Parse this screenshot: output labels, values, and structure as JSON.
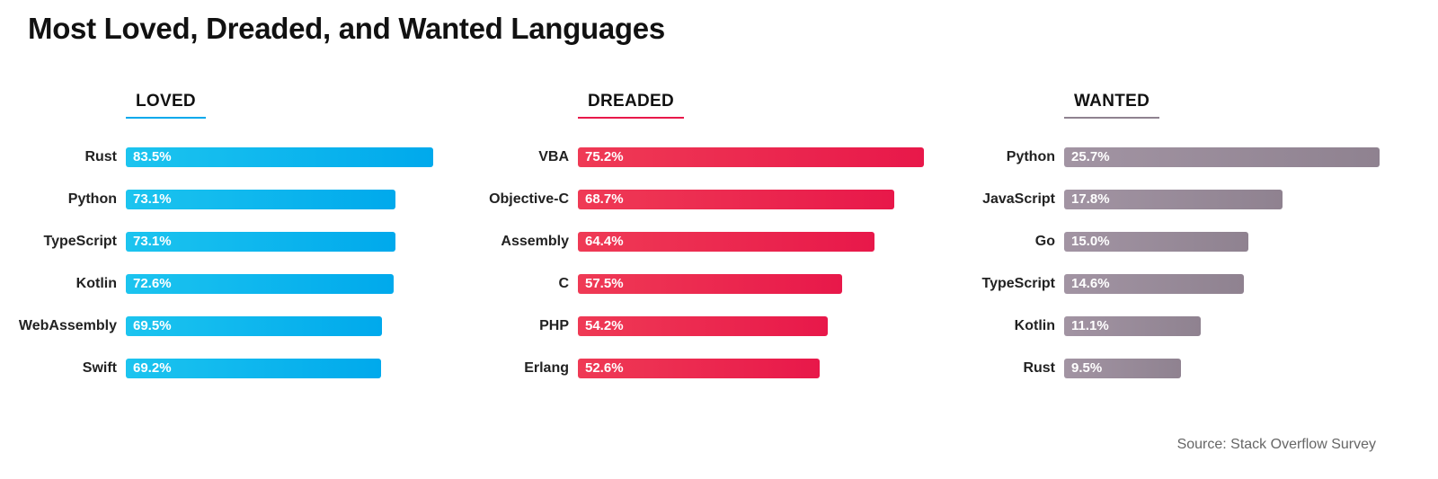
{
  "title": "Most Loved, Dreaded, and Wanted Languages",
  "source": "Source: Stack Overflow Survey",
  "chart_data": [
    {
      "type": "bar",
      "orientation": "horizontal",
      "title": "LOVED",
      "color_start": "#1cc4ef",
      "color_end": "#00a9ec",
      "scale_max": 100,
      "categories": [
        "Rust",
        "Python",
        "TypeScript",
        "Kotlin",
        "WebAssembly",
        "Swift"
      ],
      "values": [
        83.5,
        73.1,
        73.1,
        72.6,
        69.5,
        69.2
      ],
      "value_labels": [
        "83.5%",
        "73.1%",
        "73.1%",
        "72.6%",
        "69.5%",
        "69.2%"
      ]
    },
    {
      "type": "bar",
      "orientation": "horizontal",
      "title": "DREADED",
      "color_start": "#ef3a55",
      "color_end": "#e8184a",
      "scale_max": 100,
      "categories": [
        "VBA",
        "Objective-C",
        "Assembly",
        "C",
        "PHP",
        "Erlang"
      ],
      "values": [
        75.2,
        68.7,
        64.4,
        57.5,
        54.2,
        52.6
      ],
      "value_labels": [
        "75.2%",
        "68.7%",
        "64.4%",
        "57.5%",
        "54.2%",
        "52.6%"
      ]
    },
    {
      "type": "bar",
      "orientation": "horizontal",
      "title": "WANTED",
      "color_start": "#a294a3",
      "color_end": "#8f8290",
      "scale_max": 30,
      "categories": [
        "Python",
        "JavaScript",
        "Go",
        "TypeScript",
        "Kotlin",
        "Rust"
      ],
      "values": [
        25.7,
        17.8,
        15.0,
        14.6,
        11.1,
        9.5
      ],
      "value_labels": [
        "25.7%",
        "17.8%",
        "15.0%",
        "14.6%",
        "11.1%",
        "9.5%"
      ]
    }
  ]
}
